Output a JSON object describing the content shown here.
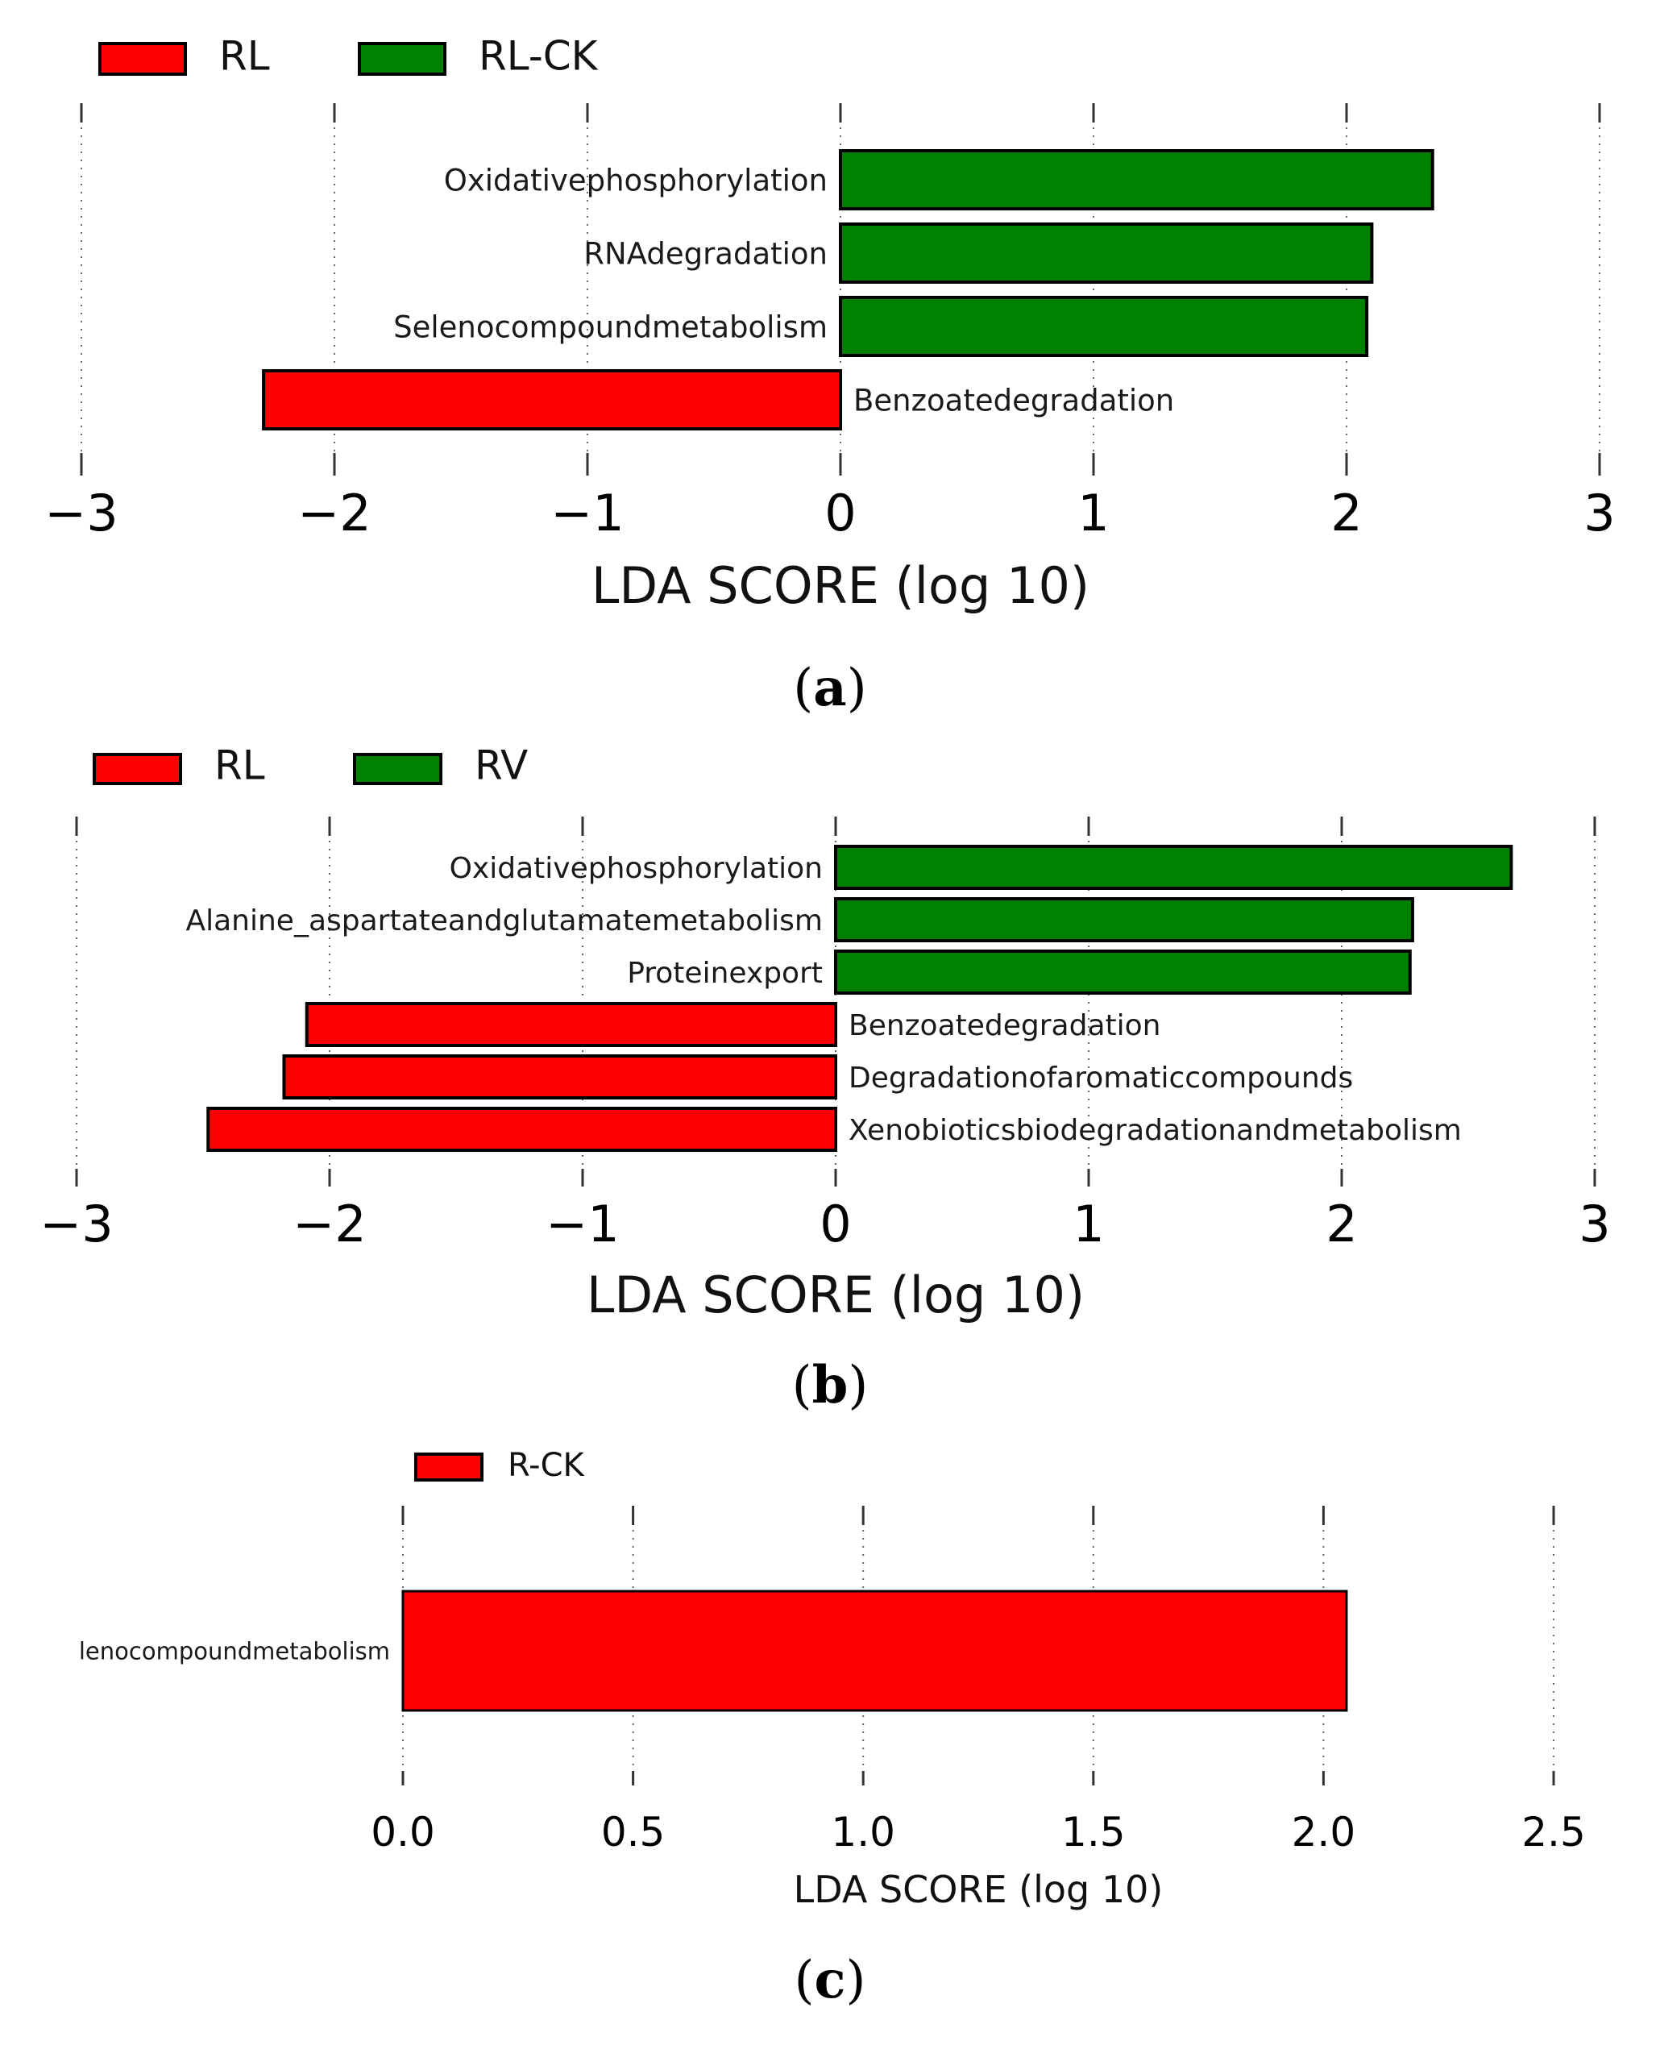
{
  "chart_data": [
    {
      "panel": "a",
      "caption_open": "(",
      "caption_letter": "a",
      "caption_close": ")",
      "type": "bar",
      "orientation": "horizontal",
      "xlabel": "LDA SCORE (log 10)",
      "xlim": [
        -3,
        3
      ],
      "ticks": [
        -3,
        -2,
        -1,
        0,
        1,
        2,
        3
      ],
      "tick_labels": [
        "−3",
        "−2",
        "−1",
        "0",
        "1",
        "2",
        "3"
      ],
      "legend": [
        {
          "name": "RL",
          "color": "#ff0000"
        },
        {
          "name": "RL-CK",
          "color": "#008000"
        }
      ],
      "bars": [
        {
          "label": "Oxidativephosphorylation",
          "value": 2.34,
          "group": "RL-CK"
        },
        {
          "label": "RNAdegradation",
          "value": 2.1,
          "group": "RL-CK"
        },
        {
          "label": "Selenocompoundmetabolism",
          "value": 2.08,
          "group": "RL-CK"
        },
        {
          "label": "Benzoatedegradation",
          "value": -2.28,
          "group": "RL"
        }
      ]
    },
    {
      "panel": "b",
      "caption_open": "(",
      "caption_letter": "b",
      "caption_close": ")",
      "type": "bar",
      "orientation": "horizontal",
      "xlabel": "LDA SCORE (log 10)",
      "xlim": [
        -3,
        3
      ],
      "ticks": [
        -3,
        -2,
        -1,
        0,
        1,
        2,
        3
      ],
      "tick_labels": [
        "−3",
        "−2",
        "−1",
        "0",
        "1",
        "2",
        "3"
      ],
      "legend": [
        {
          "name": "RL",
          "color": "#ff0000"
        },
        {
          "name": "RV",
          "color": "#008000"
        }
      ],
      "bars": [
        {
          "label": "Oxidativephosphorylation",
          "value": 2.67,
          "group": "RV"
        },
        {
          "label": "Alanine_aspartateandglutamatemetabolism",
          "value": 2.28,
          "group": "RV"
        },
        {
          "label": "Proteinexport",
          "value": 2.27,
          "group": "RV"
        },
        {
          "label": "Benzoatedegradation",
          "value": -2.09,
          "group": "RL"
        },
        {
          "label": "Degradationofaromaticcompounds",
          "value": -2.18,
          "group": "RL"
        },
        {
          "label": "Xenobioticsbiodegradationandmetabolism",
          "value": -2.48,
          "group": "RL"
        }
      ]
    },
    {
      "panel": "c",
      "caption_open": "(",
      "caption_letter": "c",
      "caption_close": ")",
      "type": "bar",
      "orientation": "horizontal",
      "xlabel": "LDA SCORE (log 10)",
      "xlim": [
        0,
        2.5
      ],
      "ticks": [
        0,
        0.5,
        1,
        1.5,
        2,
        2.5
      ],
      "tick_labels": [
        "0.0",
        "0.5",
        "1.0",
        "1.5",
        "2.0",
        "2.5"
      ],
      "legend": [
        {
          "name": "R-CK",
          "color": "#ff0000"
        }
      ],
      "bars": [
        {
          "label": "lenocompoundmetabolism",
          "value": 2.05,
          "group": "R-CK"
        }
      ]
    }
  ]
}
